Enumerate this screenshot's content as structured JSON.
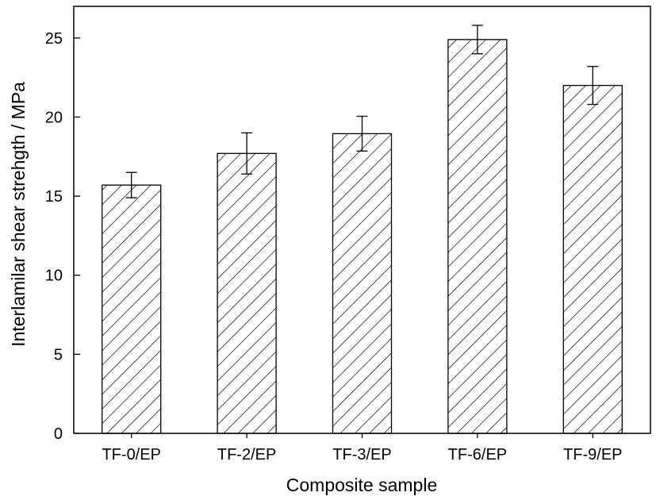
{
  "chart_data": {
    "type": "bar",
    "xlabel": "Composite sample",
    "ylabel": "Interlamilar shear strehgth / MPa",
    "categories": [
      "TF-0/EP",
      "TF-2/EP",
      "TF-3/EP",
      "TF-6/EP",
      "TF-9/EP"
    ],
    "values": [
      15.7,
      17.7,
      18.95,
      24.9,
      22.0
    ],
    "errors": [
      0.8,
      1.3,
      1.1,
      0.9,
      1.2
    ],
    "ylim": [
      0,
      27
    ],
    "yticks": [
      "0",
      "5",
      "10",
      "15",
      "20",
      "25"
    ],
    "grid": false,
    "bar_fill": "hatched diagonal",
    "colors": {
      "bar_stroke": "#000000",
      "hatch": "#000000",
      "background": "#ffffff"
    }
  }
}
